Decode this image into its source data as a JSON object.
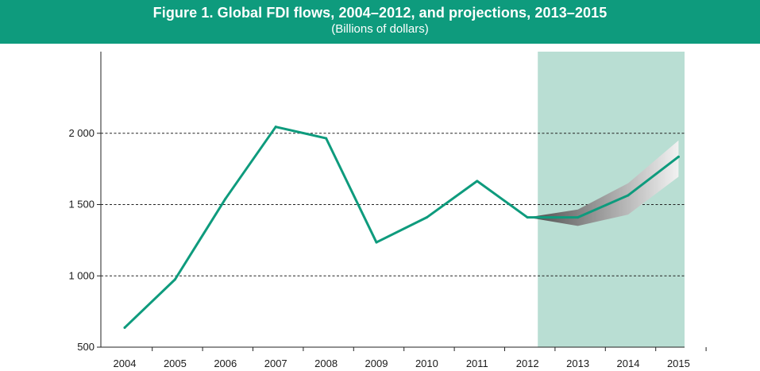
{
  "header": {
    "title": "Figure 1. Global FDI flows, 2004–2012, and projections, 2013–2015",
    "subtitle": "(Billions of dollars)"
  },
  "colors": {
    "header_bg": "#0e9b7d",
    "line": "#0e9b7d",
    "projection_band": "#b9ded3",
    "uncertainty_dark": "#5a5a5a",
    "uncertainty_light": "#efefef"
  },
  "chart_data": {
    "type": "line",
    "title": "Figure 1. Global FDI flows, 2004–2012, and projections, 2013–2015",
    "subtitle": "(Billions of dollars)",
    "xlabel": "",
    "ylabel": "",
    "categories": [
      "2004",
      "2005",
      "2006",
      "2007",
      "2008",
      "2009",
      "2010",
      "2011",
      "2012",
      "2013",
      "2014",
      "2015"
    ],
    "series": [
      {
        "values": [
          637,
          975,
          1540,
          2045,
          1965,
          1235,
          1410,
          1665,
          1410,
          1410,
          1565,
          1835
        ]
      }
    ],
    "projection": {
      "range": [
        "2012",
        "2015"
      ],
      "upper": [
        1410,
        1465,
        1650,
        1950
      ],
      "lower": [
        1410,
        1350,
        1430,
        1695
      ]
    },
    "yticks": [
      500,
      1000,
      1500,
      2000
    ],
    "ytick_labels": [
      "500",
      "1 000",
      "1 500",
      "2 000"
    ],
    "ylim": [
      500,
      2500
    ],
    "grid": {
      "y": [
        1000,
        1500,
        2000
      ],
      "style": "dashed"
    }
  }
}
